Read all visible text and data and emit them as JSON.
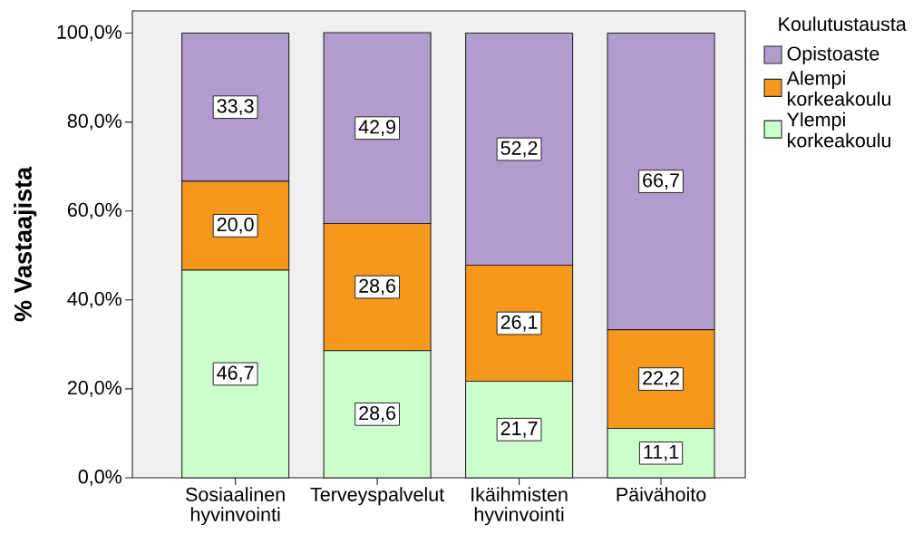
{
  "chart_data": {
    "type": "bar",
    "stacked": true,
    "categories": [
      "Sosiaalinen hyvinvointi",
      "Terveyspalvelut",
      "Ikäihmisten hyvinvointi",
      "Päivähoito"
    ],
    "ylabel": "% Vastaajista",
    "legend_title": "Koulutustausta",
    "legend": "top right",
    "ylim": [
      0,
      105
    ],
    "yticks": [
      {
        "value": 0,
        "label": "0,0%"
      },
      {
        "value": 20,
        "label": "20,0%"
      },
      {
        "value": 40,
        "label": "40,0%"
      },
      {
        "value": 60,
        "label": "60,0%"
      },
      {
        "value": 80,
        "label": "80,0%"
      },
      {
        "value": 100,
        "label": "100,0%"
      }
    ],
    "series": [
      {
        "name": "Ylempi korkeakoulu",
        "color": "#ccffcc",
        "values": [
          46.7,
          28.6,
          21.7,
          11.1
        ],
        "value_labels": [
          "46,7",
          "28,6",
          "21,7",
          "11,1"
        ]
      },
      {
        "name": "Alempi korkeakoulu",
        "color": "#f7981d",
        "values": [
          20.0,
          28.6,
          26.1,
          22.2
        ],
        "value_labels": [
          "20,0",
          "28,6",
          "26,1",
          "22,2"
        ]
      },
      {
        "name": "Opistoaste",
        "color": "#b29ccf",
        "values": [
          33.3,
          42.9,
          52.2,
          66.7
        ],
        "value_labels": [
          "33,3",
          "42,9",
          "52,2",
          "66,7"
        ]
      }
    ]
  }
}
